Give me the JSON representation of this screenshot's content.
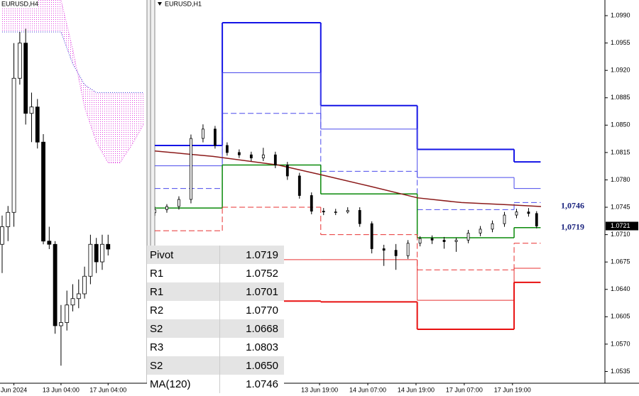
{
  "chart_data": [
    {
      "type": "candlestick",
      "title": "EURUSD,H4",
      "x": [
        0,
        1,
        2,
        3,
        4,
        5,
        6,
        7,
        8,
        9,
        10,
        11,
        12,
        13,
        14,
        15,
        16,
        17,
        18
      ],
      "open": [
        1.0747,
        1.0758,
        1.0767,
        1.0851,
        1.0873,
        1.0829,
        1.0833,
        1.0811,
        1.0749,
        1.0747,
        1.0696,
        1.0698,
        1.0709,
        1.0713,
        1.0716,
        1.0727,
        1.0747,
        1.0736,
        1.0747
      ],
      "high": [
        1.0765,
        1.0771,
        1.0873,
        1.088,
        1.0882,
        1.0842,
        1.0838,
        1.0816,
        1.0758,
        1.0749,
        1.0709,
        1.0718,
        1.0722,
        1.0725,
        1.0733,
        1.0753,
        1.0751,
        1.0753,
        1.0753
      ],
      "low": [
        1.0729,
        1.0749,
        1.0758,
        1.0847,
        1.0822,
        1.0811,
        1.0807,
        1.0747,
        1.0744,
        1.0691,
        1.0671,
        1.0693,
        1.0705,
        1.0707,
        1.0713,
        1.0722,
        1.0729,
        1.0731,
        1.074
      ],
      "close": [
        1.0758,
        1.0767,
        1.0851,
        1.0873,
        1.0829,
        1.0833,
        1.0811,
        1.0749,
        1.0747,
        1.0696,
        1.0698,
        1.0709,
        1.0713,
        1.0716,
        1.0727,
        1.0747,
        1.0736,
        1.0747,
        1.0744
      ],
      "up_color": "#ffffff",
      "down_color": "#000000",
      "cloud": {
        "x": [
          0,
          5,
          10,
          12,
          14,
          16,
          18,
          20,
          22,
          24
        ],
        "span_a": [
          1.088,
          1.088,
          1.088,
          1.086,
          1.0847,
          1.0842,
          1.0842,
          1.0842,
          1.0842,
          1.0842
        ],
        "span_b": [
          1.09,
          1.09,
          1.09,
          1.0869,
          1.0833,
          1.0811,
          1.0798,
          1.0798,
          1.0809,
          1.0822
        ],
        "color_a": "#3030d0",
        "color_b": "#e040e0"
      },
      "xlim": [
        -0.36,
        24.6
      ],
      "ylim": [
        1.066,
        1.09
      ],
      "xticks": [
        {
          "value": 2,
          "label": "Jun 2024"
        },
        {
          "value": 10,
          "label": "13 Jun 04:00"
        },
        {
          "value": 18,
          "label": "17 Jun 04:00"
        }
      ]
    },
    {
      "type": "candlestick",
      "title": "EURUSD,H1",
      "x": [
        0,
        3,
        6,
        9,
        12,
        15,
        18,
        21,
        24,
        27,
        30,
        33,
        36,
        39,
        42,
        45,
        48,
        51,
        54,
        57,
        60,
        63,
        66,
        69,
        72,
        75,
        78,
        81,
        84,
        87,
        90,
        93,
        95
      ],
      "open": [
        1.0738,
        1.0742,
        1.0746,
        1.0755,
        1.0833,
        1.0845,
        1.0824,
        1.0815,
        1.0812,
        1.0808,
        1.0812,
        1.0799,
        1.0785,
        1.076,
        1.074,
        1.0739,
        1.0739,
        1.0741,
        1.0724,
        1.0692,
        1.069,
        1.0683,
        1.0699,
        1.0705,
        1.0703,
        1.0701,
        1.0703,
        1.0712,
        1.0717,
        1.0724,
        1.0735,
        1.0739,
        1.0737
      ],
      "high": [
        1.0746,
        1.0749,
        1.0759,
        1.0838,
        1.0851,
        1.0849,
        1.0828,
        1.0819,
        1.0816,
        1.0821,
        1.0816,
        1.0803,
        1.0789,
        1.0764,
        1.0744,
        1.0743,
        1.0745,
        1.0745,
        1.0727,
        1.0697,
        1.0698,
        1.0703,
        1.0708,
        1.0709,
        1.0707,
        1.0706,
        1.0716,
        1.0721,
        1.0728,
        1.0739,
        1.0743,
        1.0744,
        1.074
      ],
      "low": [
        1.0734,
        1.0738,
        1.0742,
        1.075,
        1.0828,
        1.082,
        1.0811,
        1.0808,
        1.0804,
        1.0804,
        1.0795,
        1.078,
        1.0756,
        1.0736,
        1.0735,
        1.0735,
        1.0737,
        1.072,
        1.0686,
        1.067,
        1.0665,
        1.0679,
        1.0695,
        1.0698,
        1.0692,
        1.0688,
        1.0699,
        1.0708,
        1.0713,
        1.072,
        1.0731,
        1.0733,
        1.0718
      ],
      "close": [
        1.0742,
        1.0746,
        1.0755,
        1.0833,
        1.0845,
        1.0824,
        1.0815,
        1.0812,
        1.0808,
        1.0812,
        1.0799,
        1.0785,
        1.076,
        1.074,
        1.0739,
        1.0739,
        1.0741,
        1.0724,
        1.0692,
        1.069,
        1.0683,
        1.0699,
        1.0705,
        1.0703,
        1.0701,
        1.0703,
        1.0712,
        1.0717,
        1.0724,
        1.0735,
        1.0739,
        1.0737,
        1.0721
      ],
      "up_color": "#ffffff",
      "down_color": "#000000",
      "levels": {
        "x_edges": [
          0,
          16.8,
          41.3,
          65.3,
          89.4,
          96
        ],
        "series": [
          {
            "color": "#1414e6",
            "width": 2,
            "dash": false,
            "values": [
              1.0824,
              1.0981,
              1.0875,
              1.0819,
              1.0803
            ]
          },
          {
            "color": "#4a4aec",
            "width": 1,
            "dash": false,
            "values": [
              1.0798,
              1.0917,
              1.0845,
              1.0783,
              1.0769
            ]
          },
          {
            "color": "#4a4aec",
            "width": 1,
            "dash": true,
            "values": [
              1.0769,
              1.0865,
              1.0791,
              1.0742,
              1.0751
            ]
          },
          {
            "color": "#0a8a0a",
            "width": 1.5,
            "dash": false,
            "values": [
              1.0744,
              1.0799,
              1.0762,
              1.0706,
              1.0719
            ]
          },
          {
            "color": "#e83030",
            "width": 1,
            "dash": true,
            "values": [
              1.0715,
              1.0745,
              1.071,
              1.0665,
              1.0699
            ]
          },
          {
            "color": "#e83030",
            "width": 1,
            "dash": false,
            "values": [
              null,
              1.0678,
              1.0678,
              1.0626,
              1.0667
            ]
          },
          {
            "color": "#e81010",
            "width": 2,
            "dash": false,
            "values": [
              null,
              1.0625,
              1.0624,
              1.0589,
              1.0649
            ]
          }
        ]
      },
      "lines": [
        {
          "color": "#8b1a1a",
          "x": [
            0,
            14.5,
            30.7,
            41,
            53.4,
            65.4,
            76.3,
            88.7,
            96.1
          ],
          "values": [
            1.0817,
            1.081,
            1.0799,
            1.0787,
            1.0772,
            1.0757,
            1.0751,
            1.0748,
            1.0746
          ]
        }
      ],
      "annotations": [
        {
          "text": "1,0746",
          "y": 1.0746
        },
        {
          "text": "1,0719",
          "y": 1.0719
        }
      ],
      "price_tag": {
        "text": "1.0721",
        "y": 1.0721
      },
      "xlim": [
        0,
        112
      ],
      "ylim": [
        1.052,
        1.101
      ],
      "xticks": [
        {
          "value": 41,
          "label": "13 Jun 19:00"
        },
        {
          "value": 53,
          "label": "14 Jun 07:00"
        },
        {
          "value": 65,
          "label": "14 Jun 19:00"
        },
        {
          "value": 77,
          "label": "17 Jun 07:00"
        },
        {
          "value": 89,
          "label": "17 Jun 19:00"
        }
      ],
      "yticks": [
        {
          "value": 1.099,
          "label": "1.0990"
        },
        {
          "value": 1.0955,
          "label": "1.0955"
        },
        {
          "value": 1.092,
          "label": "1.0920"
        },
        {
          "value": 1.0885,
          "label": "1.0885"
        },
        {
          "value": 1.085,
          "label": "1.0850"
        },
        {
          "value": 1.0815,
          "label": "1.0815"
        },
        {
          "value": 1.078,
          "label": "1.0780"
        },
        {
          "value": 1.0745,
          "label": "1.0745"
        },
        {
          "value": 1.071,
          "label": "1.0710"
        },
        {
          "value": 1.0675,
          "label": "1.0675"
        },
        {
          "value": 1.064,
          "label": "1.0640"
        },
        {
          "value": 1.0605,
          "label": "1.0605"
        },
        {
          "value": 1.057,
          "label": "1.0570"
        },
        {
          "value": 1.0535,
          "label": "1.0535"
        }
      ]
    }
  ],
  "table": {
    "rows": [
      [
        "Pivot",
        "1.0719"
      ],
      [
        "R1",
        "1.0752"
      ],
      [
        "R1",
        "1.0701"
      ],
      [
        "R2",
        "1.0770"
      ],
      [
        "S2",
        "1.0668"
      ],
      [
        "R3",
        "1.0803"
      ],
      [
        "S2",
        "1.0650"
      ],
      [
        "MA(120)",
        "1.0746"
      ]
    ]
  }
}
